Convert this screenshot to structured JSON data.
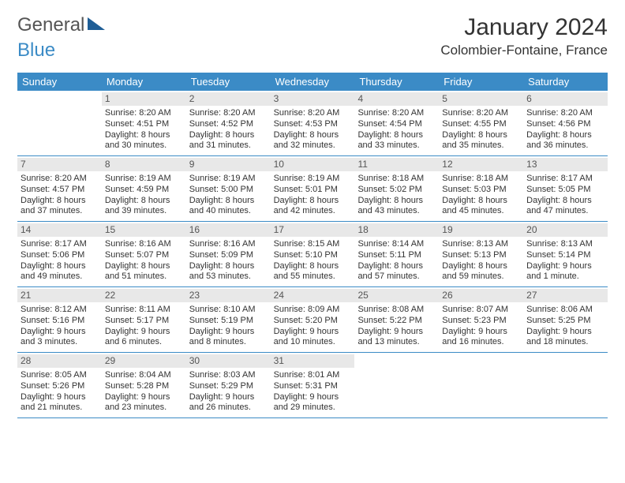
{
  "logo": {
    "text1": "General",
    "text2": "Blue"
  },
  "title": "January 2024",
  "location": "Colombier-Fontaine, France",
  "dayNames": [
    "Sunday",
    "Monday",
    "Tuesday",
    "Wednesday",
    "Thursday",
    "Friday",
    "Saturday"
  ],
  "colors": {
    "header_bg": "#3b8bc6",
    "header_fg": "#ffffff",
    "daynum_bg": "#e8e8e8",
    "rule": "#3b8bc6",
    "logo_accent": "#1f5e96"
  },
  "typography": {
    "title_fontsize": 30,
    "location_fontsize": 17,
    "dayheader_fontsize": 13,
    "cell_fontsize": 11
  },
  "layout": {
    "cols": 7,
    "rows": 5,
    "leading_blanks": 1
  },
  "days": [
    {
      "n": 1,
      "sunrise": "8:20 AM",
      "sunset": "4:51 PM",
      "daylight": "8 hours and 30 minutes."
    },
    {
      "n": 2,
      "sunrise": "8:20 AM",
      "sunset": "4:52 PM",
      "daylight": "8 hours and 31 minutes."
    },
    {
      "n": 3,
      "sunrise": "8:20 AM",
      "sunset": "4:53 PM",
      "daylight": "8 hours and 32 minutes."
    },
    {
      "n": 4,
      "sunrise": "8:20 AM",
      "sunset": "4:54 PM",
      "daylight": "8 hours and 33 minutes."
    },
    {
      "n": 5,
      "sunrise": "8:20 AM",
      "sunset": "4:55 PM",
      "daylight": "8 hours and 35 minutes."
    },
    {
      "n": 6,
      "sunrise": "8:20 AM",
      "sunset": "4:56 PM",
      "daylight": "8 hours and 36 minutes."
    },
    {
      "n": 7,
      "sunrise": "8:20 AM",
      "sunset": "4:57 PM",
      "daylight": "8 hours and 37 minutes."
    },
    {
      "n": 8,
      "sunrise": "8:19 AM",
      "sunset": "4:59 PM",
      "daylight": "8 hours and 39 minutes."
    },
    {
      "n": 9,
      "sunrise": "8:19 AM",
      "sunset": "5:00 PM",
      "daylight": "8 hours and 40 minutes."
    },
    {
      "n": 10,
      "sunrise": "8:19 AM",
      "sunset": "5:01 PM",
      "daylight": "8 hours and 42 minutes."
    },
    {
      "n": 11,
      "sunrise": "8:18 AM",
      "sunset": "5:02 PM",
      "daylight": "8 hours and 43 minutes."
    },
    {
      "n": 12,
      "sunrise": "8:18 AM",
      "sunset": "5:03 PM",
      "daylight": "8 hours and 45 minutes."
    },
    {
      "n": 13,
      "sunrise": "8:17 AM",
      "sunset": "5:05 PM",
      "daylight": "8 hours and 47 minutes."
    },
    {
      "n": 14,
      "sunrise": "8:17 AM",
      "sunset": "5:06 PM",
      "daylight": "8 hours and 49 minutes."
    },
    {
      "n": 15,
      "sunrise": "8:16 AM",
      "sunset": "5:07 PM",
      "daylight": "8 hours and 51 minutes."
    },
    {
      "n": 16,
      "sunrise": "8:16 AM",
      "sunset": "5:09 PM",
      "daylight": "8 hours and 53 minutes."
    },
    {
      "n": 17,
      "sunrise": "8:15 AM",
      "sunset": "5:10 PM",
      "daylight": "8 hours and 55 minutes."
    },
    {
      "n": 18,
      "sunrise": "8:14 AM",
      "sunset": "5:11 PM",
      "daylight": "8 hours and 57 minutes."
    },
    {
      "n": 19,
      "sunrise": "8:13 AM",
      "sunset": "5:13 PM",
      "daylight": "8 hours and 59 minutes."
    },
    {
      "n": 20,
      "sunrise": "8:13 AM",
      "sunset": "5:14 PM",
      "daylight": "9 hours and 1 minute."
    },
    {
      "n": 21,
      "sunrise": "8:12 AM",
      "sunset": "5:16 PM",
      "daylight": "9 hours and 3 minutes."
    },
    {
      "n": 22,
      "sunrise": "8:11 AM",
      "sunset": "5:17 PM",
      "daylight": "9 hours and 6 minutes."
    },
    {
      "n": 23,
      "sunrise": "8:10 AM",
      "sunset": "5:19 PM",
      "daylight": "9 hours and 8 minutes."
    },
    {
      "n": 24,
      "sunrise": "8:09 AM",
      "sunset": "5:20 PM",
      "daylight": "9 hours and 10 minutes."
    },
    {
      "n": 25,
      "sunrise": "8:08 AM",
      "sunset": "5:22 PM",
      "daylight": "9 hours and 13 minutes."
    },
    {
      "n": 26,
      "sunrise": "8:07 AM",
      "sunset": "5:23 PM",
      "daylight": "9 hours and 16 minutes."
    },
    {
      "n": 27,
      "sunrise": "8:06 AM",
      "sunset": "5:25 PM",
      "daylight": "9 hours and 18 minutes."
    },
    {
      "n": 28,
      "sunrise": "8:05 AM",
      "sunset": "5:26 PM",
      "daylight": "9 hours and 21 minutes."
    },
    {
      "n": 29,
      "sunrise": "8:04 AM",
      "sunset": "5:28 PM",
      "daylight": "9 hours and 23 minutes."
    },
    {
      "n": 30,
      "sunrise": "8:03 AM",
      "sunset": "5:29 PM",
      "daylight": "9 hours and 26 minutes."
    },
    {
      "n": 31,
      "sunrise": "8:01 AM",
      "sunset": "5:31 PM",
      "daylight": "9 hours and 29 minutes."
    }
  ],
  "labels": {
    "sunrise": "Sunrise:",
    "sunset": "Sunset:",
    "daylight": "Daylight:"
  }
}
